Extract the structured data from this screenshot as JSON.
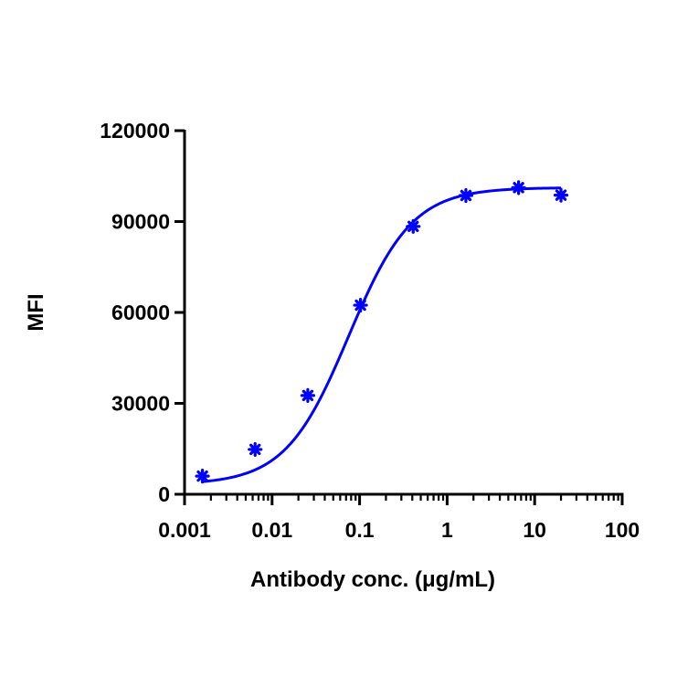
{
  "chart_data": {
    "type": "scatter",
    "title": "",
    "xlabel": "Antibody conc. (μg/mL)",
    "ylabel": "MFI",
    "x_scale": "log",
    "xlim": [
      0.001,
      100
    ],
    "ylim": [
      0,
      120000
    ],
    "x_ticks": [
      0.001,
      0.01,
      0.1,
      1,
      10,
      100
    ],
    "x_tick_labels": [
      "0.001",
      "0.01",
      "0.1",
      "1",
      "10",
      "100"
    ],
    "y_ticks": [
      0,
      30000,
      60000,
      90000,
      120000
    ],
    "y_tick_labels": [
      "0",
      "30000",
      "60000",
      "90000",
      "120000"
    ],
    "grid": false,
    "legend": "none",
    "color": "#0000ff",
    "series": [
      {
        "marker": "asterisk",
        "x": [
          0.0016,
          0.0064,
          0.0256,
          0.1024,
          0.4096,
          1.6384,
          6.5536,
          20
        ],
        "y": [
          6000,
          14800,
          32600,
          62400,
          88400,
          98600,
          101200,
          98700
        ]
      }
    ],
    "fit_curve": {
      "model": "4PL",
      "bottom": 3200,
      "top": 101200,
      "ec50": 0.075,
      "hill": 1.2,
      "x_range": [
        0.0016,
        20
      ]
    }
  }
}
